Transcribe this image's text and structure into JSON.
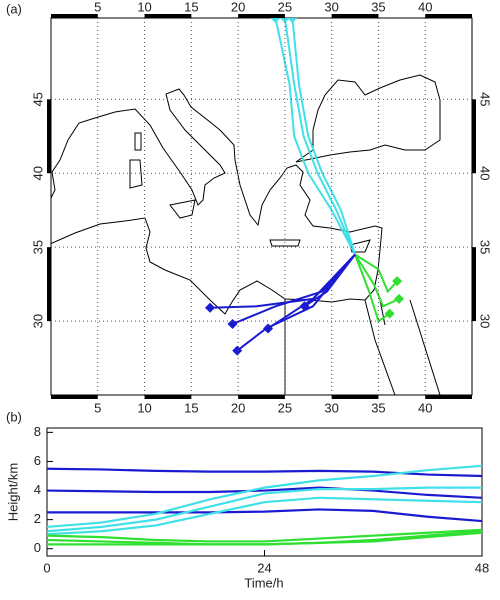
{
  "chart_data": [
    {
      "type": "map",
      "label": "(a)",
      "xlim": [
        0,
        45
      ],
      "ylim": [
        25,
        50.5
      ],
      "xticks": [
        5,
        10,
        15,
        20,
        25,
        30,
        35,
        40
      ],
      "yticks": [
        30,
        35,
        40,
        45
      ],
      "grid": true,
      "marker": "diamond",
      "series": [
        {
          "color": "#40e0e8",
          "x": [
            32.5,
            30,
            27.5,
            26,
            25.5,
            24
          ],
          "y": [
            34.5,
            37.5,
            40,
            42.5,
            46,
            50.5
          ]
        },
        {
          "color": "#40e0e8",
          "x": [
            32.5,
            30.5,
            28.5,
            27,
            26,
            25
          ],
          "y": [
            34.5,
            37.5,
            40,
            42.5,
            46,
            50.5
          ]
        },
        {
          "color": "#40e0e8",
          "x": [
            32.5,
            31,
            29,
            27.5,
            26.5,
            25.8
          ],
          "y": [
            34.5,
            37.5,
            40,
            42.5,
            46,
            50.5
          ]
        },
        {
          "color": "#30e030",
          "x": [
            32.5,
            35,
            36,
            37
          ],
          "y": [
            34.5,
            33.5,
            32,
            32.7
          ]
        },
        {
          "color": "#30e030",
          "x": [
            32.5,
            34.5,
            35.5,
            37.2
          ],
          "y": [
            34.5,
            32.5,
            31,
            31.5
          ]
        },
        {
          "color": "#30e030",
          "x": [
            32.5,
            34,
            35,
            36.2
          ],
          "y": [
            34.5,
            32,
            30,
            30.5
          ]
        },
        {
          "color": "#1a1ad0",
          "x": [
            32.5,
            28,
            22,
            17
          ],
          "y": [
            34.5,
            31.5,
            31,
            30.9
          ]
        },
        {
          "color": "#1a1ad0",
          "x": [
            32.5,
            29,
            24,
            19.4
          ],
          "y": [
            34.5,
            32,
            31,
            29.8
          ]
        },
        {
          "color": "#1a1ad0",
          "x": [
            32.5,
            28,
            23,
            19.9
          ],
          "y": [
            34.5,
            31,
            29.5,
            28
          ]
        },
        {
          "color": "#1a1ad0",
          "x": [
            32.5,
            29.5,
            27.1
          ],
          "y": [
            34.5,
            32,
            31
          ]
        },
        {
          "color": "#1a1ad0",
          "x": [
            32.5,
            28,
            23.2
          ],
          "y": [
            34.5,
            31.5,
            29.5
          ]
        }
      ]
    },
    {
      "type": "line",
      "label": "(b)",
      "xlabel": "Time/h",
      "ylabel": "Height/km",
      "x": [
        0,
        6,
        12,
        18,
        24,
        30,
        36,
        42,
        48
      ],
      "xlim": [
        0,
        48
      ],
      "ylim": [
        -0.5,
        8.3
      ],
      "xticks": [
        0,
        24,
        48
      ],
      "yticks": [
        0,
        2,
        4,
        6,
        8
      ],
      "series": [
        {
          "color": "#1a1ad0",
          "values": [
            5.5,
            5.45,
            5.35,
            5.3,
            5.3,
            5.35,
            5.3,
            5.1,
            5.0
          ]
        },
        {
          "color": "#1a1ad0",
          "values": [
            4.0,
            3.95,
            3.9,
            3.9,
            4.0,
            4.2,
            4.0,
            3.7,
            3.5
          ]
        },
        {
          "color": "#1a1ad0",
          "values": [
            2.5,
            2.5,
            2.5,
            2.5,
            2.55,
            2.7,
            2.6,
            2.2,
            1.9
          ]
        },
        {
          "color": "#40e0e8",
          "values": [
            1.5,
            1.8,
            2.4,
            3.4,
            4.2,
            4.7,
            5.0,
            5.4,
            5.7
          ]
        },
        {
          "color": "#40e0e8",
          "values": [
            1.2,
            1.5,
            2.0,
            2.9,
            3.8,
            4.1,
            4.1,
            4.2,
            4.2
          ]
        },
        {
          "color": "#40e0e8",
          "values": [
            1.0,
            1.2,
            1.6,
            2.4,
            3.2,
            3.5,
            3.4,
            3.3,
            3.2
          ]
        },
        {
          "color": "#30e030",
          "values": [
            0.9,
            0.8,
            0.6,
            0.5,
            0.5,
            0.7,
            0.9,
            1.1,
            1.3
          ]
        },
        {
          "color": "#30e030",
          "values": [
            0.6,
            0.5,
            0.4,
            0.3,
            0.3,
            0.4,
            0.6,
            0.9,
            1.2
          ]
        },
        {
          "color": "#30e030",
          "values": [
            0.3,
            0.3,
            0.3,
            0.3,
            0.3,
            0.4,
            0.5,
            0.8,
            1.1
          ]
        }
      ]
    }
  ]
}
